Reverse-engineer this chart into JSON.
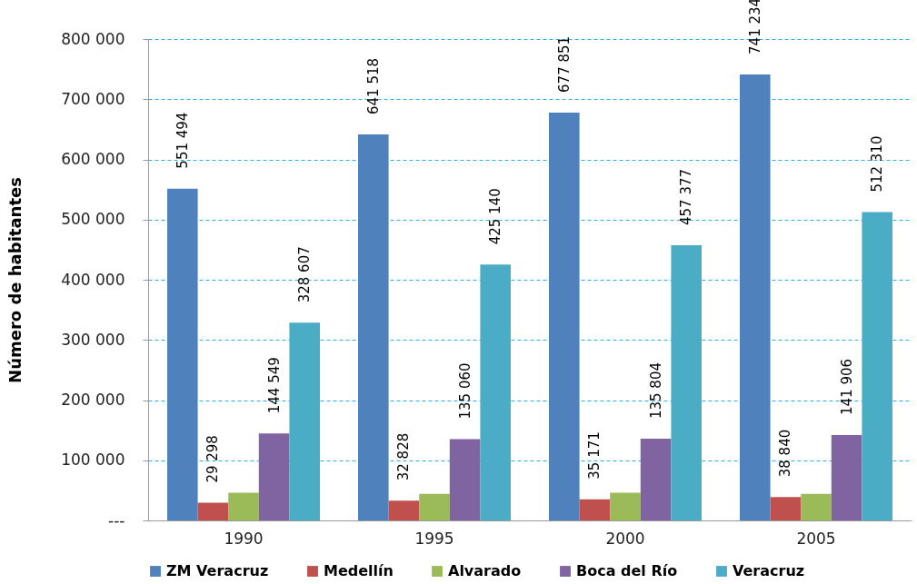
{
  "chart_data": {
    "type": "bar",
    "ylabel": "Número de habitantes",
    "categories": [
      "1990",
      "1995",
      "2000",
      "2005"
    ],
    "series": [
      {
        "name": "ZM Veracruz",
        "color": "#4f81bd",
        "values": [
          551494,
          641518,
          677851,
          741234
        ],
        "value_labels": [
          "551 494",
          "641 518",
          "677 851",
          "741 234"
        ]
      },
      {
        "name": "Medellín",
        "color": "#c0504d",
        "values": [
          29298,
          32828,
          35171,
          38840
        ],
        "value_labels": [
          "29 298",
          "32 828",
          "35 171",
          "38 840"
        ]
      },
      {
        "name": "Alvarado",
        "color": "#9bbb59",
        "values": [
          46000,
          44000,
          46000,
          44000
        ]
      },
      {
        "name": "Boca del Río",
        "color": "#8064a2",
        "values": [
          144549,
          135060,
          135804,
          141906
        ],
        "value_labels": [
          "144 549",
          "135 060",
          "135 804",
          "141 906"
        ]
      },
      {
        "name": "Veracruz",
        "color": "#4bacc6",
        "values": [
          328607,
          425140,
          457377,
          512310
        ],
        "value_labels": [
          "328 607",
          "425 140",
          "457 377",
          "512 310"
        ]
      }
    ],
    "ylim": [
      0,
      800000
    ],
    "yticks": [
      {
        "value": 0,
        "label": "---"
      },
      {
        "value": 100000,
        "label": "100 000"
      },
      {
        "value": 200000,
        "label": "200 000"
      },
      {
        "value": 300000,
        "label": "300 000"
      },
      {
        "value": 400000,
        "label": "400 000"
      },
      {
        "value": 500000,
        "label": "500 000"
      },
      {
        "value": 600000,
        "label": "600 000"
      },
      {
        "value": 700000,
        "label": "700 000"
      },
      {
        "value": 800000,
        "label": "800 000"
      }
    ],
    "grid": "y",
    "legend": "bottom"
  }
}
